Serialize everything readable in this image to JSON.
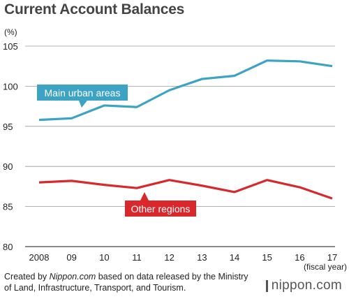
{
  "title": "Current Account Balances",
  "source": {
    "prefix": "Created by ",
    "publisher": "Nippon.com",
    "suffix": " based on data released by the Ministry of Land, Infrastructure, Transport, and Tourism."
  },
  "logo_text": "nippon.com",
  "colors": {
    "urban": "#3ca3c4",
    "other": "#d8282c",
    "grid": "#999999"
  },
  "chart_data": {
    "type": "line",
    "title": "Current Account Balances",
    "ylabel": "(%)",
    "xlabel": "(fiscal year)",
    "categories": [
      "2008",
      "09",
      "10",
      "11",
      "12",
      "13",
      "14",
      "15",
      "16",
      "17"
    ],
    "ylim": [
      80,
      105
    ],
    "yticks": [
      80,
      85,
      90,
      95,
      100,
      105
    ],
    "grid": true,
    "series": [
      {
        "name": "Main urban areas",
        "color": "#3ca3c4",
        "values": [
          95.8,
          96.0,
          97.6,
          97.4,
          99.5,
          100.9,
          101.3,
          103.2,
          103.1,
          102.5
        ]
      },
      {
        "name": "Other regions",
        "color": "#d8282c",
        "values": [
          88.0,
          88.2,
          87.7,
          87.3,
          88.3,
          87.6,
          86.8,
          88.3,
          87.4,
          86.0
        ]
      }
    ]
  }
}
